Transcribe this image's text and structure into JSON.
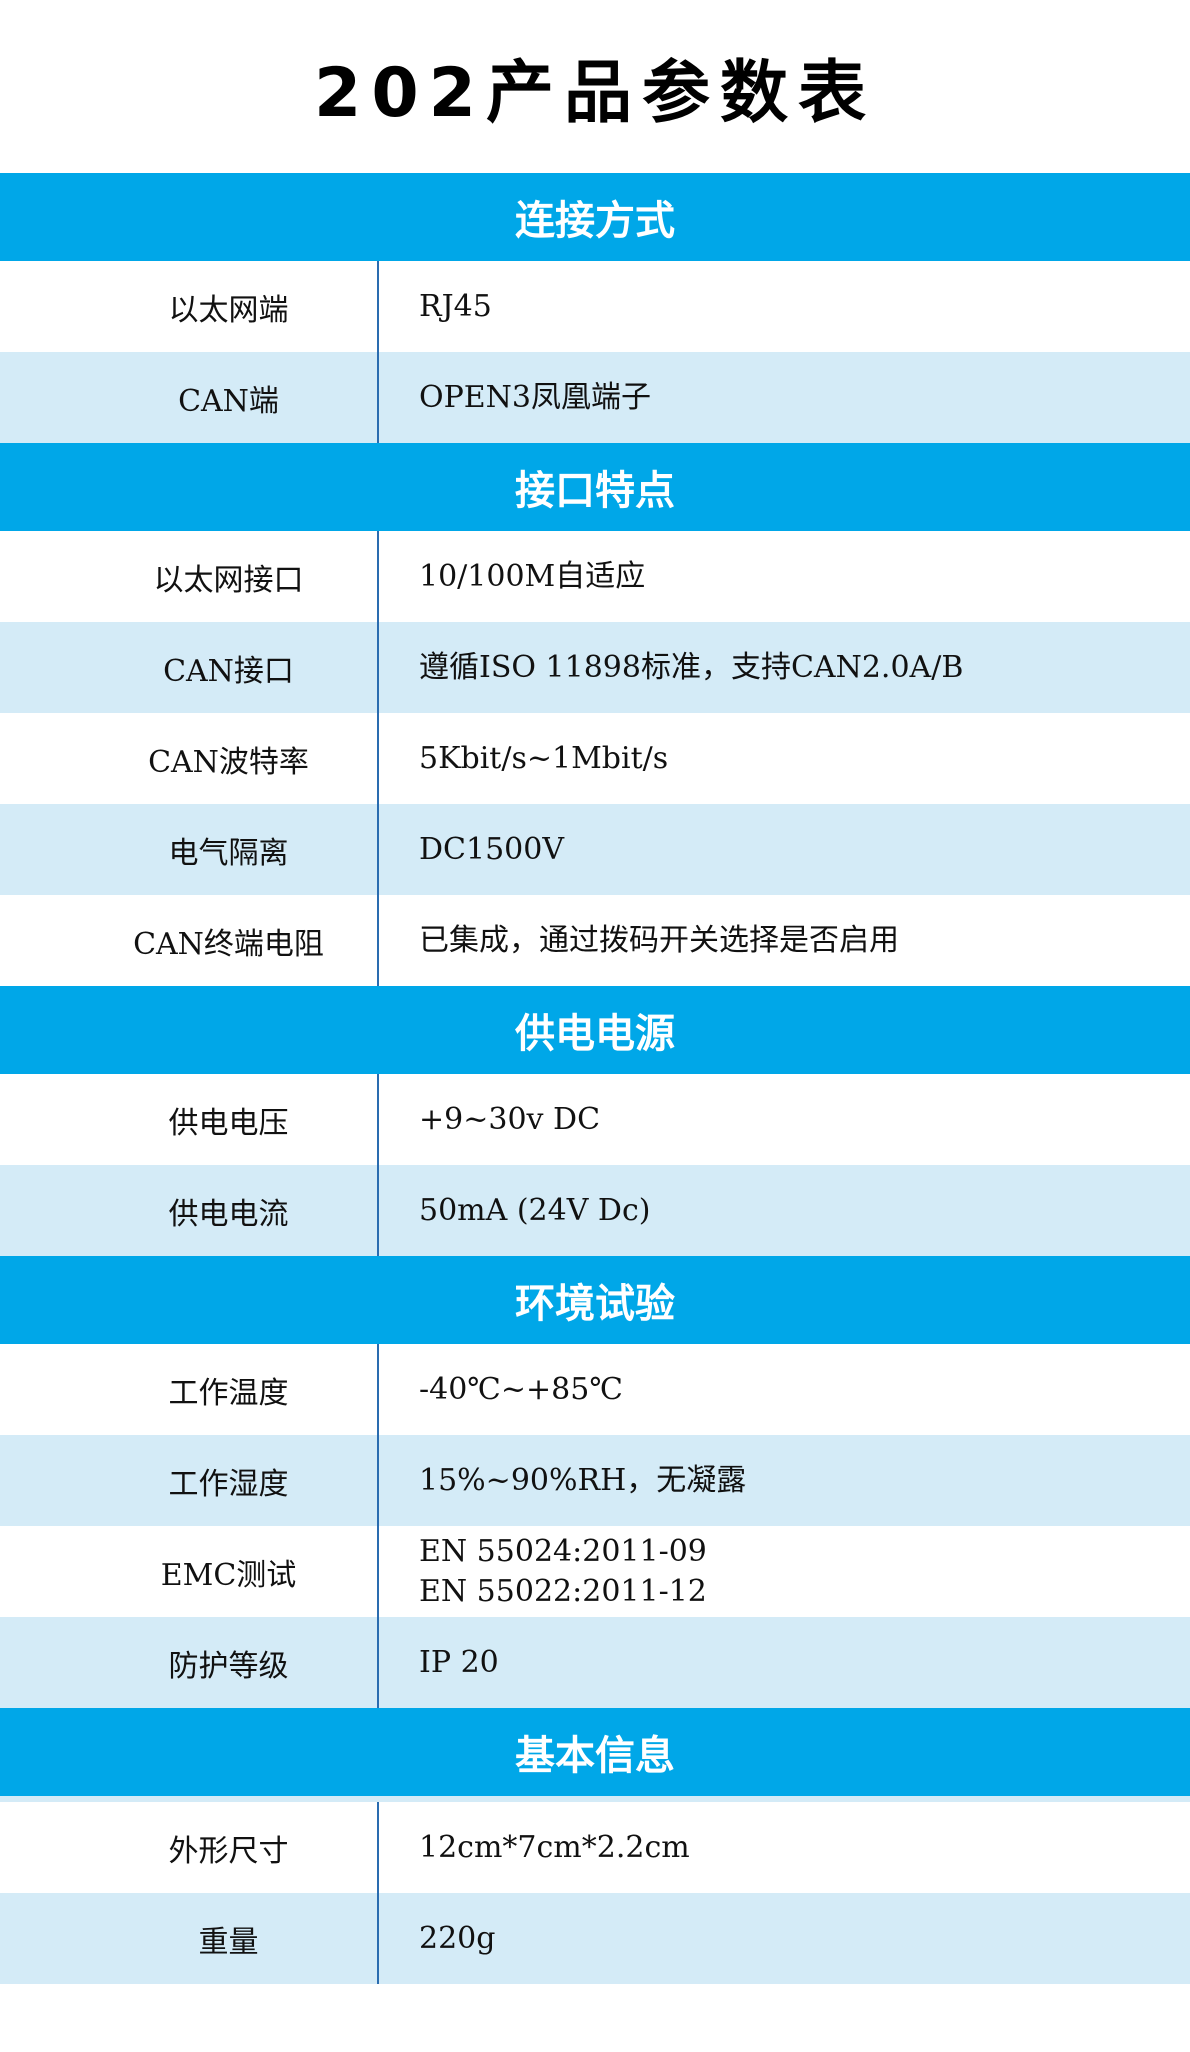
{
  "title": "202产品参数表",
  "colors": {
    "header": "#00a7e8",
    "row_alt": "#d4ebf7",
    "divider": "#2a6cb0"
  },
  "sections": [
    {
      "title": "连接方式",
      "rows": [
        {
          "key": "以太网端",
          "values": [
            "RJ45"
          ]
        },
        {
          "key": "CAN端",
          "values": [
            "OPEN3凤凰端子"
          ]
        }
      ]
    },
    {
      "title": "接口特点",
      "rows": [
        {
          "key": "以太网接口",
          "values": [
            "10/100M自适应"
          ]
        },
        {
          "key": "CAN接口",
          "values": [
            "遵循ISO 11898标准，支持CAN2.0A/B"
          ]
        },
        {
          "key": "CAN波特率",
          "values": [
            "5Kbit/s~1Mbit/s"
          ]
        },
        {
          "key": "电气隔离",
          "values": [
            "DC1500V"
          ]
        },
        {
          "key": "CAN终端电阻",
          "values": [
            "已集成，通过拨码开关选择是否启用"
          ]
        }
      ]
    },
    {
      "title": "供电电源",
      "rows": [
        {
          "key": "供电电压",
          "values": [
            "+9~30v DC"
          ]
        },
        {
          "key": "供电电流",
          "values": [
            "50mA (24V Dc)"
          ]
        }
      ]
    },
    {
      "title": "环境试验",
      "rows": [
        {
          "key": "工作温度",
          "values": [
            "-40℃~+85℃"
          ]
        },
        {
          "key": "工作湿度",
          "values": [
            "15%~90%RH，无凝露"
          ]
        },
        {
          "key": "EMC测试",
          "values": [
            "EN 55024:2011-09",
            "EN 55022:2011-12"
          ]
        },
        {
          "key": "防护等级",
          "values": [
            "IP 20"
          ]
        }
      ]
    },
    {
      "title": "基本信息",
      "rows": [
        {
          "key": "外形尺寸",
          "values": [
            "12cm*7cm*2.2cm"
          ]
        },
        {
          "key": "重量",
          "values": [
            "220g"
          ]
        }
      ]
    }
  ]
}
